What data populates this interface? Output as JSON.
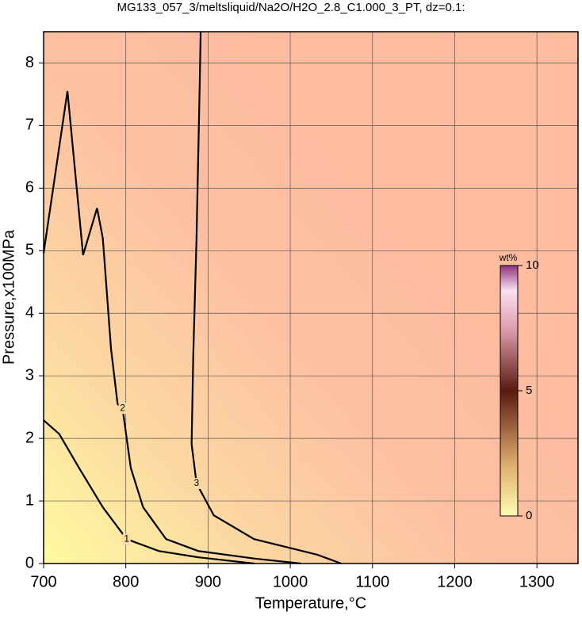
{
  "chart_data": {
    "type": "contour",
    "title": "MG133_057_3/meltsliquid/Na2O/H2O_2.8_C1.000_3_PT, dz=0.1:",
    "x_label": "Temperature,°C",
    "y_label": "Pressure,x100MPa",
    "xlim": [
      700,
      1350
    ],
    "ylim": [
      0,
      8.5
    ],
    "xticks": [
      700,
      800,
      900,
      1000,
      1100,
      1200,
      1300
    ],
    "yticks": [
      0,
      1,
      2,
      3,
      4,
      5,
      6,
      7,
      8
    ],
    "grid": true,
    "contours": [
      {
        "level": 1,
        "x": [
          700,
          719,
          743,
          772,
          801,
          840,
          888,
          956
        ],
        "y": [
          2.29,
          2.07,
          1.53,
          0.9,
          0.39,
          0.2,
          0.1,
          0
        ]
      },
      {
        "level": 2,
        "x": [
          700,
          729,
          748,
          765,
          772,
          782,
          790,
          796,
          806,
          821,
          849,
          888,
          956,
          1013
        ],
        "y": [
          4.96,
          7.55,
          4.93,
          5.68,
          5.2,
          3.43,
          2.55,
          2.48,
          1.53,
          0.9,
          0.39,
          0.2,
          0.08,
          0
        ]
      },
      {
        "level": 3,
        "x": [
          891,
          890,
          886,
          882,
          880,
          886,
          907,
          956,
          1033,
          1062
        ],
        "y": [
          8.5,
          7.74,
          5.21,
          3.31,
          1.91,
          1.28,
          0.77,
          0.39,
          0.14,
          0
        ]
      }
    ],
    "colorbar": {
      "label": "wt%",
      "lim": [
        0,
        10
      ],
      "ticks": [
        0,
        5,
        10
      ]
    }
  }
}
